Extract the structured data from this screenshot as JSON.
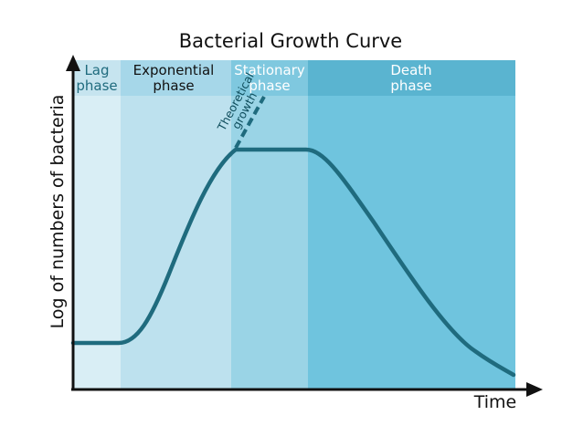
{
  "title": "Bacterial Growth Curve",
  "phases": [
    {
      "line1": "Lag",
      "line2": "phase"
    },
    {
      "line1": "Exponential",
      "line2": "phase"
    },
    {
      "line1": "Stationary",
      "line2": "phase"
    },
    {
      "line1": "Death",
      "line2": "phase"
    }
  ],
  "annotation": {
    "line1": "Theoretical",
    "line2": "growth"
  },
  "axes": {
    "x_label": "Time",
    "y_label": "Log of numbers of bacteria"
  },
  "colors": {
    "lag_band": "#d9eef5",
    "exponential_band": "#bde1ee",
    "stationary_band": "#9ad4e6",
    "death_band": "#6fc4de",
    "lag_header": "#c6e4ef",
    "exponential_header": "#a6d7e9",
    "stationary_header": "#7fc8df",
    "death_header": "#5ab4d0",
    "curve": "#1f6b7e",
    "axis": "#111111"
  }
}
